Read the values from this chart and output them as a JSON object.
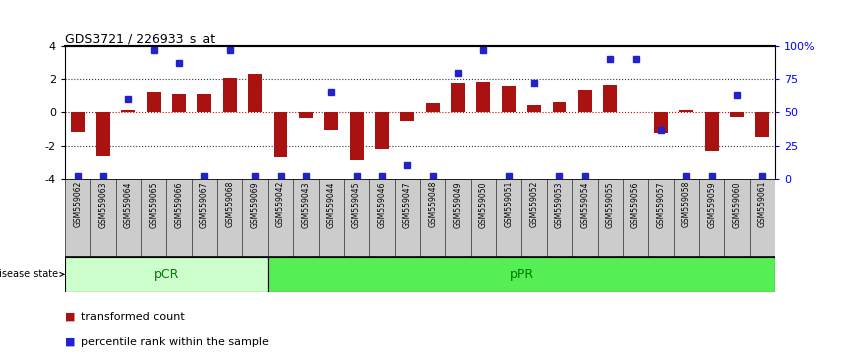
{
  "title": "GDS3721 / 226933_s_at",
  "samples": [
    "GSM559062",
    "GSM559063",
    "GSM559064",
    "GSM559065",
    "GSM559066",
    "GSM559067",
    "GSM559068",
    "GSM559069",
    "GSM559042",
    "GSM559043",
    "GSM559044",
    "GSM559045",
    "GSM559046",
    "GSM559047",
    "GSM559048",
    "GSM559049",
    "GSM559050",
    "GSM559051",
    "GSM559052",
    "GSM559053",
    "GSM559054",
    "GSM559055",
    "GSM559056",
    "GSM559057",
    "GSM559058",
    "GSM559059",
    "GSM559060",
    "GSM559061"
  ],
  "transformed_count": [
    -1.2,
    -2.6,
    0.15,
    1.25,
    1.1,
    1.1,
    2.05,
    2.3,
    -2.7,
    -0.35,
    -1.05,
    -2.85,
    -2.2,
    -0.5,
    0.55,
    1.75,
    1.85,
    1.6,
    0.45,
    0.65,
    1.35,
    1.65,
    0.0,
    -1.25,
    0.15,
    -2.3,
    -0.25,
    -1.5
  ],
  "percentile_rank": [
    2,
    2,
    60,
    97,
    87,
    2,
    97,
    2,
    2,
    2,
    65,
    2,
    2,
    10,
    2,
    80,
    97,
    2,
    72,
    2,
    2,
    90,
    90,
    37,
    2,
    2,
    63,
    2
  ],
  "group_pCR_idx": [
    0,
    8
  ],
  "group_pPR_idx": [
    8,
    28
  ],
  "bar_color": "#aa1111",
  "dot_color": "#2222cc",
  "pCR_facecolor": "#ccffcc",
  "pPR_facecolor": "#55ee55",
  "ylim": [
    -4,
    4
  ],
  "yticks_left": [
    -4,
    -2,
    0,
    2,
    4
  ],
  "yticks_right_pct": [
    0,
    25,
    50,
    75,
    100
  ],
  "ytick_labels_right": [
    "0",
    "25",
    "50",
    "75",
    "100%"
  ],
  "hlines": [
    -2.0,
    0.0,
    2.0
  ],
  "hline_at_zero_color": "#cc0000",
  "hline_dotted_color": "#333333",
  "bar_width": 0.55,
  "dot_size": 4.5,
  "xlab_facecolor": "#cccccc",
  "xlab_fontsize": 5.5,
  "legend_square_color_bar": "#aa1111",
  "legend_square_color_dot": "#2222cc"
}
